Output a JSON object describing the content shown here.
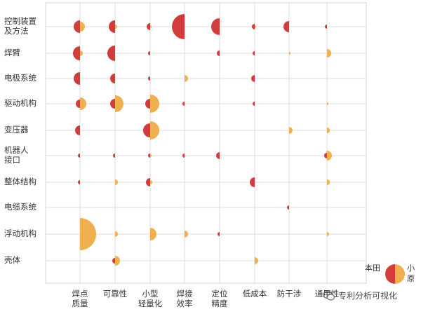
{
  "chart_data": {
    "type": "bubble-halves",
    "rows": [
      [
        "控制装置",
        "及方法"
      ],
      [
        "焊臂"
      ],
      [
        "电极系统"
      ],
      [
        "驱动机构"
      ],
      [
        "变压器"
      ],
      [
        "机器人",
        "接口"
      ],
      [
        "整体结构"
      ],
      [
        "电缆系统"
      ],
      [
        "浮动机构"
      ],
      [
        "壳体"
      ]
    ],
    "columns": [
      [
        "焊点",
        "质量"
      ],
      [
        "可靠性"
      ],
      [
        "小型",
        "轻量化"
      ],
      [
        "焊接",
        "效率"
      ],
      [
        "定位",
        "精度"
      ],
      [
        "低成本"
      ],
      [
        "防干涉"
      ],
      [
        "通用性"
      ]
    ],
    "series": [
      {
        "name": "本田",
        "side": "left",
        "color": "#d23c3c",
        "values": [
          [
            9,
            9,
            5,
            18,
            12,
            4,
            8,
            3
          ],
          [
            10,
            11,
            3,
            0,
            4,
            3,
            0,
            0
          ],
          [
            9,
            7,
            3,
            0,
            0,
            5,
            0,
            0
          ],
          [
            6,
            7,
            7,
            3,
            0,
            3,
            0,
            0
          ],
          [
            7,
            0,
            10,
            0,
            0,
            0,
            0,
            0
          ],
          [
            3,
            3,
            3,
            3,
            5,
            0,
            0,
            4
          ],
          [
            3,
            0,
            6,
            0,
            0,
            7,
            0,
            0
          ],
          [
            0,
            0,
            0,
            0,
            0,
            0,
            3,
            0
          ],
          [
            0,
            0,
            0,
            0,
            3,
            0,
            0,
            0
          ],
          [
            0,
            4,
            0,
            0,
            0,
            0,
            0,
            0
          ]
        ]
      },
      {
        "name": "小原",
        "side": "right",
        "color": "#f0b050",
        "values": [
          [
            7,
            3,
            2,
            0,
            0,
            2,
            0,
            0
          ],
          [
            4,
            0,
            0,
            0,
            0,
            0,
            2,
            6
          ],
          [
            0,
            0,
            0,
            5,
            0,
            0,
            0,
            0
          ],
          [
            9,
            12,
            13,
            0,
            0,
            0,
            0,
            2
          ],
          [
            0,
            0,
            13,
            0,
            0,
            0,
            5,
            4
          ],
          [
            0,
            0,
            2,
            0,
            0,
            0,
            0,
            7
          ],
          [
            0,
            4,
            3,
            0,
            0,
            0,
            0,
            4
          ],
          [
            0,
            0,
            0,
            0,
            0,
            0,
            0,
            0
          ],
          [
            23,
            4,
            9,
            5,
            0,
            0,
            0,
            3
          ],
          [
            0,
            7,
            0,
            0,
            0,
            5,
            0,
            0
          ]
        ]
      }
    ],
    "grid": true,
    "legend_position": "bottom-right"
  },
  "legend": {
    "left_label": "本田",
    "right_label_lines": [
      "小",
      "原"
    ]
  },
  "watermark": {
    "text": "专利分析可视化",
    "logo": "wechat-icon"
  }
}
